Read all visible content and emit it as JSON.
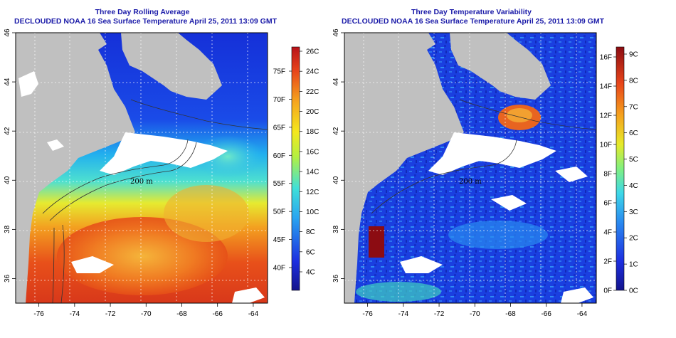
{
  "panels": [
    {
      "title": "Three Day Rolling Average",
      "subtitle": "DECLOUDED NOAA 16 Sea Surface Temperature April 25, 2011 13:09 GMT",
      "x_ticks": [
        "-76",
        "-74",
        "-72",
        "-70",
        "-68",
        "-66",
        "-64"
      ],
      "y_ticks": [
        "46",
        "44",
        "42",
        "40",
        "38",
        "36"
      ],
      "colorbar_left": [
        "26C",
        "24C",
        "22C",
        "20C",
        "18C",
        "16C",
        "14C",
        "12C",
        "10C",
        "8C",
        "6C",
        "4C"
      ],
      "colorbar_right": [
        "75F",
        "70F",
        "65F",
        "60F",
        "55F",
        "50F",
        "45F",
        "40F"
      ],
      "contour_label": "200 m"
    },
    {
      "title": "Three Day Temperature Variability",
      "subtitle": "DECLOUDED NOAA 16 Sea Surface Temperature April 25, 2011 13:09 GMT",
      "x_ticks": [
        "-76",
        "-74",
        "-72",
        "-70",
        "-68",
        "-66",
        "-64"
      ],
      "y_ticks": [
        "46",
        "44",
        "42",
        "40",
        "38",
        "36"
      ],
      "colorbar_left": [
        "16F",
        "14F",
        "12F",
        "10F",
        "8F",
        "6F",
        "4F",
        "2F",
        "0F"
      ],
      "colorbar_right": [
        "9C",
        "8C",
        "7C",
        "6C",
        "5C",
        "4C",
        "3C",
        "2C",
        "1C",
        "0C"
      ],
      "contour_label": "200 m"
    }
  ],
  "colors": {
    "land": "#c0c0c0",
    "cloud": "#ffffff",
    "title": "#1a1aa8"
  },
  "map_extent": {
    "lon": [
      -77.3,
      -63.2
    ],
    "lat": [
      35,
      46
    ]
  }
}
